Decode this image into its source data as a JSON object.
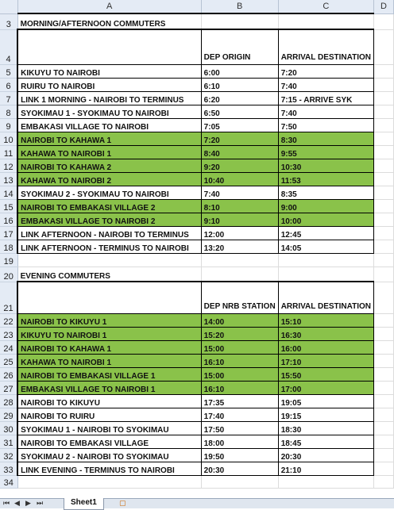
{
  "columns": [
    "A",
    "B",
    "C",
    "D"
  ],
  "title_morning": "MORNING/AFTERNOON COMMUTERS",
  "morning_header": {
    "dep": "DEP ORIGIN",
    "arr": "ARRIVAL DESTINATION"
  },
  "morning_rows": [
    {
      "row": "5",
      "route": "KIKUYU TO NAIROBI",
      "dep": "6:00",
      "arr": "7:20",
      "green": false
    },
    {
      "row": "6",
      "route": "RUIRU TO NAIROBI",
      "dep": "6:10",
      "arr": "7:40",
      "green": false
    },
    {
      "row": "7",
      "route": "LINK 1 MORNING - NAIROBI TO TERMINUS",
      "dep": "6:20",
      "arr": "7:15 - ARRIVE SYK",
      "green": false
    },
    {
      "row": "8",
      "route": "SYOKIMAU 1 - SYOKIMAU TO NAIROBI",
      "dep": "6:50",
      "arr": "7:40",
      "green": false
    },
    {
      "row": "9",
      "route": "EMBAKASI VILLAGE TO NAIROBI",
      "dep": "7:05",
      "arr": "7:50",
      "green": false
    },
    {
      "row": "10",
      "route": "NAIROBI TO KAHAWA 1",
      "dep": "7:20",
      "arr": "8:30",
      "green": true
    },
    {
      "row": "11",
      "route": "KAHAWA TO NAIROBI 1",
      "dep": "8:40",
      "arr": "9:55",
      "green": true
    },
    {
      "row": "12",
      "route": "NAIROBI TO KAHAWA 2",
      "dep": "9:20",
      "arr": "10:30",
      "green": true
    },
    {
      "row": "13",
      "route": "KAHAWA TO NAIROBI 2",
      "dep": "10:40",
      "arr": "11:53",
      "green": true
    },
    {
      "row": "14",
      "route": "SYOKIMAU 2 - SYOKIMAU TO NAIROBI",
      "dep": "7:40",
      "arr": "8:35",
      "green": false
    },
    {
      "row": "15",
      "route": "NAIROBI TO EMBAKASI VILLAGE 2",
      "dep": "8:10",
      "arr": "9:00",
      "green": true
    },
    {
      "row": "16",
      "route": "EMBAKASI VILLAGE TO NAIROBI 2",
      "dep": "9:10",
      "arr": "10:00",
      "green": true
    },
    {
      "row": "17",
      "route": "LINK AFTERNOON - NAIROBI TO TERMINUS",
      "dep": "12:00",
      "arr": "12:45",
      "green": false
    },
    {
      "row": "18",
      "route": "LINK AFTERNOON - TERMINUS TO NAIROBI",
      "dep": "13:20",
      "arr": "14:05",
      "green": false
    }
  ],
  "title_evening": "EVENING COMMUTERS",
  "evening_header": {
    "dep": "DEP NRB STATION",
    "arr": "ARRIVAL DESTINATION"
  },
  "evening_rows": [
    {
      "row": "22",
      "route": "NAIROBI TO KIKUYU 1",
      "dep": "14:00",
      "arr": "15:10",
      "green": true
    },
    {
      "row": "23",
      "route": "KIKUYU TO NAIROBI 1",
      "dep": "15:20",
      "arr": "16:30",
      "green": true
    },
    {
      "row": "24",
      "route": "NAIROBI TO KAHAWA 1",
      "dep": "15:00",
      "arr": "16:00",
      "green": true
    },
    {
      "row": "25",
      "route": "KAHAWA TO NAIROBI 1",
      "dep": "16:10",
      "arr": "17:10",
      "green": true
    },
    {
      "row": "26",
      "route": "NAIROBI TO EMBAKASI VILLAGE 1",
      "dep": "15:00",
      "arr": "15:50",
      "green": true
    },
    {
      "row": "27",
      "route": "EMBAKASI VILLAGE TO NAIROBI 1",
      "dep": "16:10",
      "arr": "17:00",
      "green": true
    },
    {
      "row": "28",
      "route": "NAIROBI TO KIKUYU",
      "dep": "17:35",
      "arr": "19:05",
      "green": false
    },
    {
      "row": "29",
      "route": "NAIROBI TO RUIRU",
      "dep": "17:40",
      "arr": "19:15",
      "green": false
    },
    {
      "row": "30",
      "route": "SYOKIMAU 1 - NAIROBI TO SYOKIMAU",
      "dep": "17:50",
      "arr": "18:30",
      "green": false
    },
    {
      "row": "31",
      "route": "NAIROBI TO EMBAKASI VILLAGE",
      "dep": "18:00",
      "arr": "18:45",
      "green": false
    },
    {
      "row": "32",
      "route": "SYOKIMAU 2 - NAIROBI TO SYOKIMAU",
      "dep": "19:50",
      "arr": "20:30",
      "green": false
    },
    {
      "row": "33",
      "route": "LINK EVENING - TERMINUS TO NAIROBI",
      "dep": "20:30",
      "arr": "21:10",
      "green": false
    }
  ],
  "row_numbers": {
    "r3": "3",
    "r4": "4",
    "r19": "19",
    "r20": "20",
    "r21": "21",
    "r34": "34"
  },
  "sheet_tab": "Sheet1",
  "nav": {
    "first": "⏮",
    "prev": "◀",
    "next": "▶",
    "last": "⏭"
  },
  "colors": {
    "green": "#8ac24a",
    "header_bg": "#e4ebf5"
  }
}
